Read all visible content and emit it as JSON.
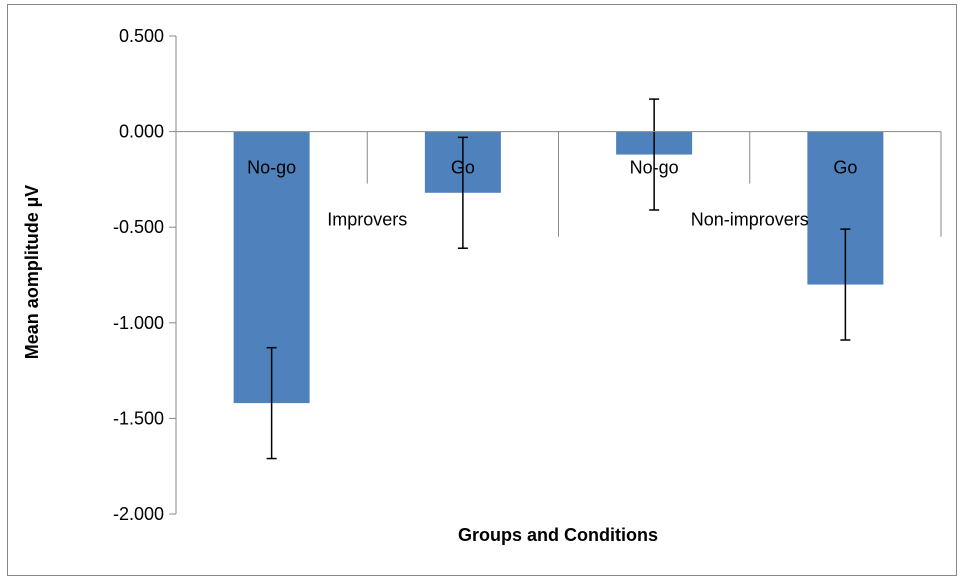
{
  "chart_data": {
    "type": "bar",
    "xlabel": "Groups and Conditions",
    "ylabel": "Mean aomplitude µV",
    "ylim": [
      -2.0,
      0.5
    ],
    "yticks": [
      0.5,
      0.0,
      -0.5,
      -1.0,
      -1.5,
      -2.0
    ],
    "ytick_labels": [
      "0.500",
      "0.000",
      "-0.500",
      "-1.000",
      "-1.500",
      "-2.000"
    ],
    "categories": [
      "No-go",
      "Go",
      "No-go",
      "Go"
    ],
    "groups": [
      "Improvers",
      "Non-improvers"
    ],
    "values": [
      -1.42,
      -0.32,
      -0.12,
      -0.8
    ],
    "errors": [
      0.29,
      0.29,
      0.29,
      0.29
    ],
    "bar_color": "#4F81BD",
    "grid": false
  }
}
